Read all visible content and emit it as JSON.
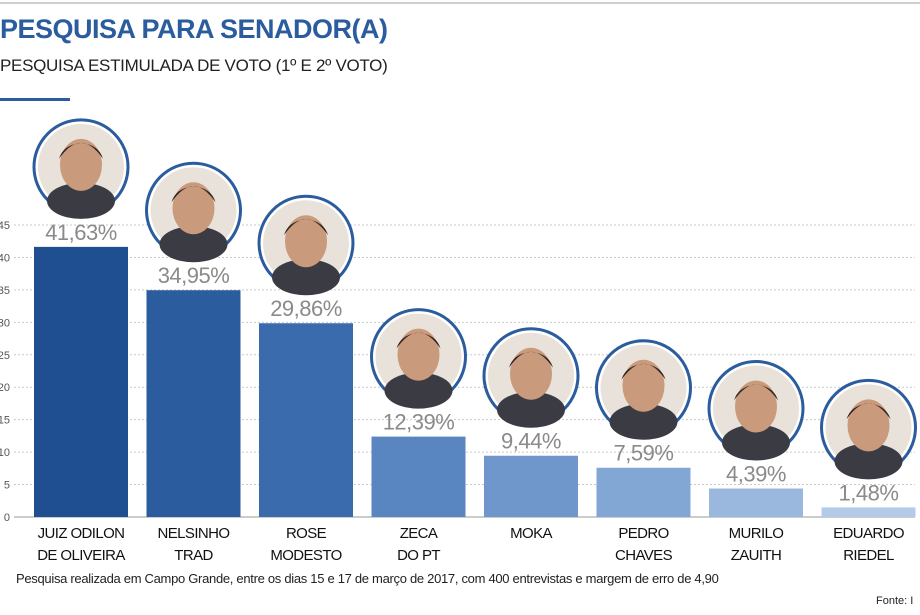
{
  "header": {
    "title": "PESQUISA PARA SENADOR(A)",
    "subtitle": "PESQUISA ESTIMULADA DE VOTO (1º E 2º VOTO)"
  },
  "footer": {
    "note": "Pesquisa realizada em Campo Grande, entre os dias 15 e 17 de março de 2017, com 400 entrevistas e margem de erro de 4,90",
    "source": "Fonte: I"
  },
  "chart_data": {
    "type": "bar",
    "title": "PESQUISA PARA SENADOR(A)",
    "subtitle": "PESQUISA ESTIMULADA DE VOTO (1º E 2º VOTO)",
    "categories": [
      [
        "JUIZ ODILON",
        "DE OLIVEIRA"
      ],
      [
        "NELSINHO",
        "TRAD"
      ],
      [
        "ROSE",
        "MODESTO"
      ],
      [
        "ZECA",
        "DO PT"
      ],
      [
        "MOKA"
      ],
      [
        "PEDRO",
        "CHAVES"
      ],
      [
        "MURILO",
        "ZAUITH"
      ],
      [
        "EDUARDO",
        "RIEDEL"
      ]
    ],
    "values": [
      41.63,
      34.95,
      29.86,
      12.39,
      9.44,
      7.59,
      4.39,
      1.48
    ],
    "value_labels": [
      "41,63%",
      "34,95%",
      "29,86%",
      "12,39%",
      "9,44%",
      "7,59%",
      "4,39%",
      "1,48%"
    ],
    "y_ticks": [
      "0",
      "5",
      "10",
      "15",
      "20",
      "25",
      "30",
      "35",
      "40",
      "45"
    ],
    "ylim": [
      0,
      45
    ],
    "grid": true,
    "colors": [
      "#1f4f91",
      "#2a5c9e",
      "#3a6cad",
      "#5985c0",
      "#6f97cb",
      "#83a7d4",
      "#9ab8de",
      "#b3cbe8"
    ],
    "photo_ring_color": "#2b5c9e"
  }
}
